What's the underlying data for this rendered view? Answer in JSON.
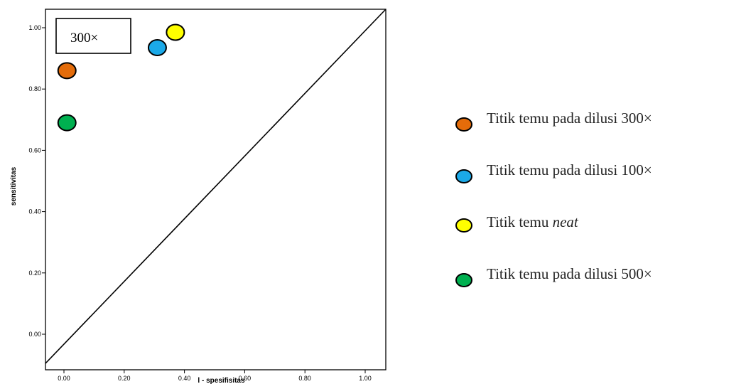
{
  "chart_data": {
    "type": "scatter",
    "xlabel": "l - spesifisitas",
    "ylabel": "sensitivitas",
    "xlim": [
      0,
      1
    ],
    "ylim": [
      0,
      1
    ],
    "x_ticks": [
      "0.00",
      "0.20",
      "0.40",
      "0.60",
      "0.80",
      "1.00"
    ],
    "y_ticks": [
      "0.00",
      "0.20",
      "0.40",
      "0.60",
      "0.80",
      "1.00"
    ],
    "reference_line": "diagonal",
    "annotation": "300×",
    "points": [
      {
        "id": "dilusi-300",
        "x": 0.01,
        "y": 0.86,
        "color": "#e46c0a"
      },
      {
        "id": "dilusi-100",
        "x": 0.31,
        "y": 0.935,
        "color": "#1ba9e8"
      },
      {
        "id": "neat",
        "x": 0.37,
        "y": 0.985,
        "color": "#ffff00"
      },
      {
        "id": "dilusi-500",
        "x": 0.01,
        "y": 0.69,
        "color": "#00b050"
      }
    ],
    "legend": [
      {
        "prefix": "Titik temu pada dilusi 300×",
        "emph": "",
        "color": "#e46c0a"
      },
      {
        "prefix": "Titik temu pada dilusi 100×",
        "emph": "",
        "color": "#1ba9e8"
      },
      {
        "prefix": "Titik temu ",
        "emph": "neat",
        "color": "#ffff00"
      },
      {
        "prefix": "Titik temu pada dilusi 500×",
        "emph": "",
        "color": "#00b050"
      }
    ]
  }
}
